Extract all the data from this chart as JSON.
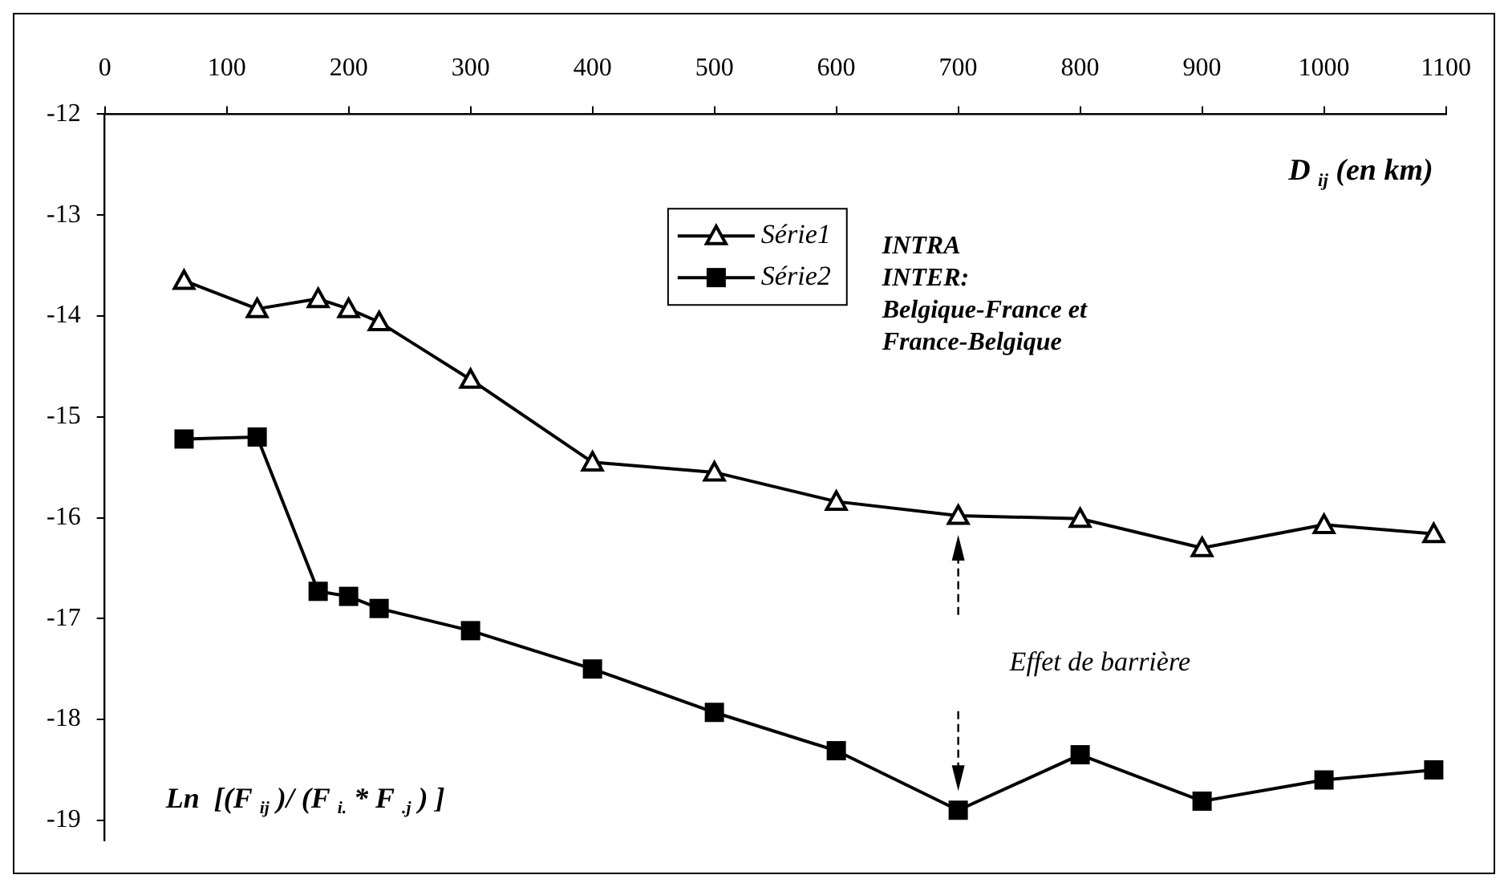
{
  "chart_data": {
    "type": "line",
    "xlabel": "D $_{ij}$ (en km)",
    "ylabel": "Ln  [(F $_{ij}$ )/ (F $_{i.}$ * F $_{.j}$ ) ]",
    "x": [
      65,
      125,
      175,
      200,
      225,
      300,
      400,
      500,
      600,
      700,
      800,
      900,
      1000,
      1090
    ],
    "series": [
      {
        "name": "Série1",
        "color": "#000000",
        "marker": "triangle",
        "values": [
          -13.65,
          -13.93,
          -13.83,
          -13.93,
          -14.06,
          -14.63,
          -15.45,
          -15.55,
          -15.84,
          -15.98,
          -16.01,
          -16.3,
          -16.07,
          -16.16
        ]
      },
      {
        "name": "Série2",
        "color": "#000000",
        "marker": "square",
        "values": [
          -15.22,
          -15.2,
          -16.73,
          -16.78,
          -16.9,
          -17.12,
          -17.5,
          -17.93,
          -18.31,
          -18.9,
          -18.35,
          -18.81,
          -18.6,
          -18.5
        ]
      }
    ],
    "xlim": [
      0,
      1100
    ],
    "xticks": [
      0,
      100,
      200,
      300,
      400,
      500,
      600,
      700,
      800,
      900,
      1000,
      1100
    ],
    "ylim": [
      -19.2,
      -12
    ],
    "yticks": [
      -12,
      -13,
      -14,
      -15,
      -16,
      -17,
      -18,
      -19
    ],
    "legend": "top",
    "annotations": [
      "INTRA",
      "INTER: Belgique-France et France-Belgique",
      "Effet de barrière"
    ]
  }
}
